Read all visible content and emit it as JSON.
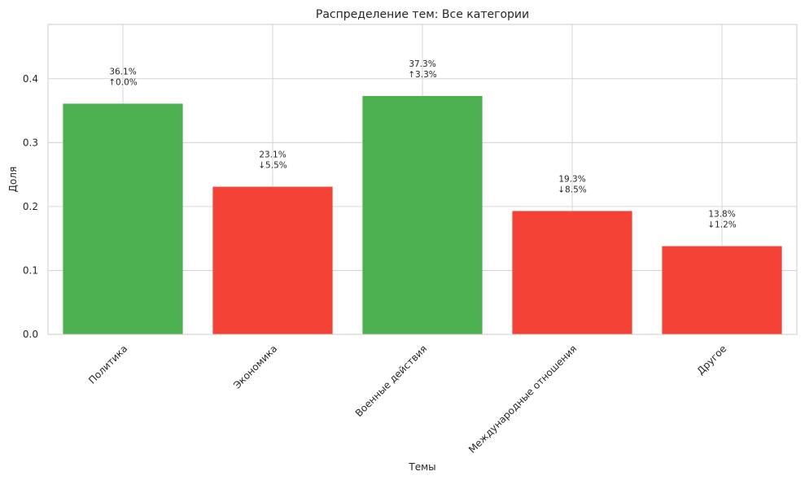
{
  "chart_data": {
    "type": "bar",
    "title": "Распределение тем: Все категории",
    "xlabel": "Темы",
    "ylabel": "Доля",
    "categories": [
      "Политика",
      "Экономика",
      "Военные действия",
      "Международные отношения",
      "Другое"
    ],
    "values": [
      0.361,
      0.231,
      0.373,
      0.193,
      0.138
    ],
    "bar_colors": [
      "#4caf50",
      "#f44336",
      "#4caf50",
      "#f44336",
      "#f44336"
    ],
    "labels": [
      {
        "pct": "36.1%",
        "change": "↑0.0%"
      },
      {
        "pct": "23.1%",
        "change": "↓5.5%"
      },
      {
        "pct": "37.3%",
        "change": "↑3.3%"
      },
      {
        "pct": "19.3%",
        "change": "↓8.5%"
      },
      {
        "pct": "13.8%",
        "change": "↓1.2%"
      }
    ],
    "ylim": [
      0,
      0.485
    ],
    "yticks": [
      0.0,
      0.1,
      0.2,
      0.3,
      0.4
    ],
    "ytick_labels": [
      "0.0",
      "0.1",
      "0.2",
      "0.3",
      "0.4"
    ],
    "grid": true,
    "legend": "none"
  }
}
